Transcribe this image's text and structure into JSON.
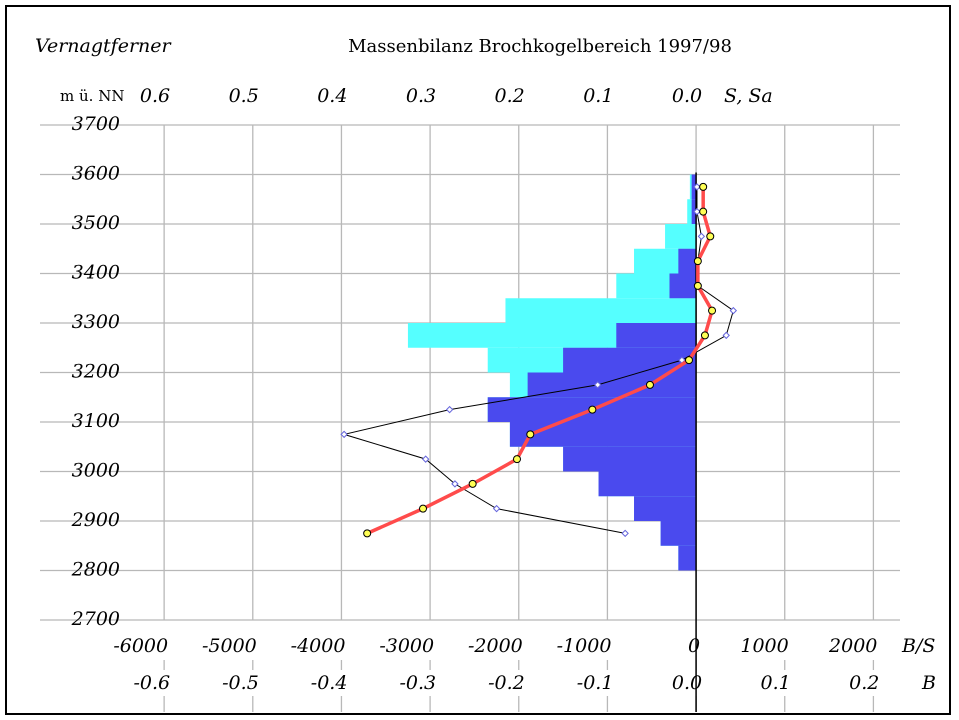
{
  "chart_data": {
    "type": "bar",
    "subtitle": "Vernagtferner",
    "title": "Massenbilanz Brochkogelbereich 1997/98",
    "ylabel": "m ü. NN",
    "x2label": "S, Sa",
    "xlabel": "B/S",
    "x3label": "B",
    "ylim": [
      2700,
      3700
    ],
    "yticks": [
      2700,
      2800,
      2900,
      3000,
      3100,
      3200,
      3300,
      3400,
      3500,
      3600,
      3700
    ],
    "xlim": [
      -7400,
      2300
    ],
    "xticks": [
      -6000,
      -5000,
      -4000,
      -3000,
      -2000,
      -1000,
      0,
      1000,
      2000
    ],
    "x2lim": [
      0.74,
      -0.23
    ],
    "x2ticks": [
      0.6,
      0.5,
      0.4,
      0.3,
      0.2,
      0.1,
      {
        "value": 0,
        "label": "0.0"
      }
    ],
    "x3lim": [
      -0.74,
      0.23
    ],
    "x3ticks": [
      -0.6,
      -0.5,
      -0.4,
      -0.3,
      -0.2,
      -0.1,
      {
        "value": 0,
        "label": "0.0"
      },
      0.1,
      0.2
    ],
    "grid": true,
    "bins": [
      3600,
      3550,
      3500,
      3450,
      3400,
      3350,
      3300,
      3250,
      3200,
      3150,
      3100,
      3050,
      3000,
      2950,
      2900,
      2850,
      2800
    ],
    "bar_series": [
      {
        "color": "#55ffff",
        "axis": "x2",
        "values": [
          0.007,
          0.01,
          0.035,
          0.07,
          0.09,
          0.215,
          0.325,
          0.235,
          0.21,
          0.235,
          0.21,
          0.15,
          0.11,
          0.07,
          0.04,
          0.02
        ]
      },
      {
        "color": "#4a4aee",
        "axis": "x2",
        "values": [
          0.005,
          0.005,
          0,
          0.02,
          0.03,
          0,
          0.09,
          0.15,
          0.19,
          0.235,
          0.21,
          0.15,
          0.11,
          0.07,
          0.04,
          0.02
        ]
      }
    ],
    "y": [
      3575,
      3525,
      3475,
      3425,
      3375,
      3325,
      3275,
      3225,
      3175,
      3125,
      3075,
      3025,
      2975,
      2925,
      2875
    ],
    "line_series": [
      {
        "color": "#000000",
        "marker_color": "#6666dd",
        "values": [
          10,
          10,
          60,
          20,
          20,
          420,
          340,
          -160,
          -1110,
          -2780,
          -3970,
          -3050,
          -2720,
          -2250,
          -800
        ]
      },
      {
        "color": "#ff4b4b",
        "marker_color": "#ffff55",
        "values": [
          80,
          80,
          160,
          20,
          20,
          180,
          100,
          -80,
          -520,
          -1170,
          -1870,
          -2020,
          -2520,
          -3080,
          -3710
        ]
      }
    ]
  }
}
